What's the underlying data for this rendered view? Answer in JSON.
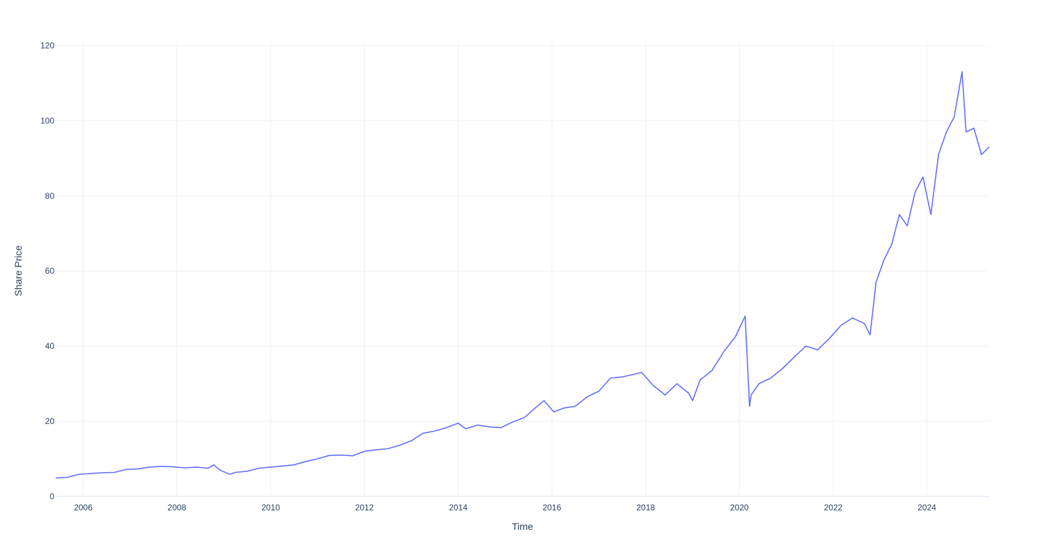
{
  "chart_data": {
    "type": "line",
    "xlabel": "Time",
    "ylabel": "Share Price",
    "xlim": [
      "2005-06-01",
      "2025-05-01"
    ],
    "ylim": [
      0,
      121
    ],
    "x_ticks": [
      "2006",
      "2008",
      "2010",
      "2012",
      "2014",
      "2016",
      "2018",
      "2020",
      "2022",
      "2024"
    ],
    "y_ticks": [
      0,
      20,
      40,
      60,
      80,
      100,
      120
    ],
    "grid": true,
    "line_color": "#636efa",
    "series": [
      {
        "x": [
          "2005-06-01",
          "2005-09-01",
          "2005-12-01",
          "2006-03-01",
          "2006-06-01",
          "2006-09-01",
          "2006-12-01",
          "2007-03-01",
          "2007-06-01",
          "2007-09-01",
          "2007-12-01",
          "2008-03-01",
          "2008-06-01",
          "2008-09-01",
          "2008-10-15",
          "2008-12-01",
          "2009-02-15",
          "2009-04-01",
          "2009-07-01",
          "2009-10-01",
          "2010-01-01",
          "2010-04-01",
          "2010-07-01",
          "2010-10-01",
          "2011-01-01",
          "2011-04-01",
          "2011-07-01",
          "2011-10-01",
          "2012-01-01",
          "2012-04-01",
          "2012-07-01",
          "2012-10-01",
          "2013-01-01",
          "2013-04-01",
          "2013-07-01",
          "2013-10-01",
          "2014-01-01",
          "2014-03-01",
          "2014-06-01",
          "2014-09-01",
          "2014-12-01",
          "2015-03-01",
          "2015-06-01",
          "2015-09-01",
          "2015-11-01",
          "2016-01-15",
          "2016-04-01",
          "2016-07-01",
          "2016-10-01",
          "2017-01-01",
          "2017-04-01",
          "2017-07-01",
          "2017-10-01",
          "2017-12-01",
          "2018-03-01",
          "2018-06-01",
          "2018-09-01",
          "2018-12-01",
          "2019-01-01",
          "2019-03-01",
          "2019-06-01",
          "2019-09-01",
          "2019-12-01",
          "2020-02-15",
          "2020-03-20",
          "2020-04-01",
          "2020-06-01",
          "2020-09-01",
          "2020-12-01",
          "2021-03-01",
          "2021-06-01",
          "2021-09-01",
          "2021-12-01",
          "2022-03-01",
          "2022-06-01",
          "2022-09-01",
          "2022-10-15",
          "2022-12-01",
          "2023-02-01",
          "2023-04-01",
          "2023-06-01",
          "2023-08-01",
          "2023-10-01",
          "2023-12-01",
          "2024-02-01",
          "2024-04-01",
          "2024-06-01",
          "2024-08-01",
          "2024-10-01",
          "2024-11-01",
          "2025-01-01",
          "2025-03-01",
          "2025-05-01"
        ],
        "y": [
          4.9,
          5.1,
          5.9,
          6.1,
          6.3,
          6.4,
          7.2,
          7.3,
          7.8,
          8.0,
          7.9,
          7.6,
          7.8,
          7.5,
          8.4,
          7.0,
          5.9,
          6.4,
          6.7,
          7.5,
          7.8,
          8.1,
          8.4,
          9.3,
          10.0,
          10.9,
          11.0,
          10.8,
          12.0,
          12.4,
          12.7,
          13.6,
          14.8,
          16.8,
          17.4,
          18.3,
          19.5,
          18.0,
          19.0,
          18.5,
          18.3,
          19.8,
          21.0,
          23.8,
          25.5,
          22.5,
          23.5,
          24.0,
          26.5,
          28.0,
          31.5,
          31.8,
          32.5,
          33.0,
          29.5,
          27.0,
          30.0,
          27.5,
          25.5,
          31.0,
          33.5,
          38.5,
          42.5,
          48.0,
          24.0,
          27.0,
          30.0,
          31.5,
          34.0,
          37.0,
          40.0,
          39.0,
          42.0,
          45.5,
          47.5,
          46.0,
          43.0,
          57.0,
          63.0,
          67.0,
          75.0,
          72.0,
          81.0,
          85.0,
          75.0,
          91.0,
          97.0,
          101.0,
          113.0,
          97.0,
          98.0,
          91.0,
          93.0
        ]
      }
    ]
  }
}
